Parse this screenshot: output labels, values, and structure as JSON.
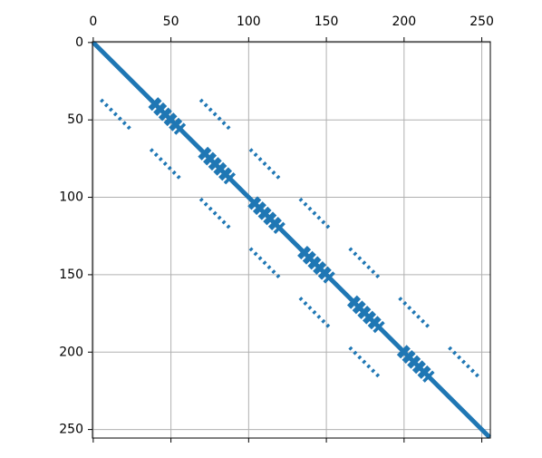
{
  "chart_data": {
    "type": "spy",
    "xlim": [
      -0.5,
      255.5
    ],
    "ylim": [
      255.5,
      -0.5
    ],
    "xticks": [
      0,
      50,
      100,
      150,
      200,
      250
    ],
    "yticks": [
      0,
      50,
      100,
      150,
      200,
      250
    ],
    "grid": true,
    "color": "#1f77b4",
    "segments": [
      {
        "style": "solid",
        "x": [
          0,
          255
        ],
        "y": [
          0,
          255
        ]
      },
      {
        "style": "dashed",
        "x": [
          5,
          25
        ],
        "y": [
          37,
          57
        ]
      },
      {
        "style": "dashed",
        "x": [
          37,
          57
        ],
        "y": [
          69,
          89
        ]
      },
      {
        "style": "dashed",
        "x": [
          69,
          89
        ],
        "y": [
          101,
          121
        ]
      },
      {
        "style": "dashed",
        "x": [
          101,
          121
        ],
        "y": [
          133,
          153
        ]
      },
      {
        "style": "dashed",
        "x": [
          133,
          153
        ],
        "y": [
          165,
          185
        ]
      },
      {
        "style": "dashed",
        "x": [
          165,
          185
        ],
        "y": [
          197,
          217
        ]
      },
      {
        "style": "dashed",
        "x": [
          69,
          89
        ],
        "y": [
          37,
          57
        ]
      },
      {
        "style": "dashed",
        "x": [
          101,
          121
        ],
        "y": [
          69,
          89
        ]
      },
      {
        "style": "dashed",
        "x": [
          133,
          153
        ],
        "y": [
          101,
          121
        ]
      },
      {
        "style": "dashed",
        "x": [
          165,
          185
        ],
        "y": [
          133,
          153
        ]
      },
      {
        "style": "dashed",
        "x": [
          197,
          217
        ],
        "y": [
          165,
          185
        ]
      },
      {
        "style": "dashed",
        "x": [
          229,
          249
        ],
        "y": [
          197,
          217
        ]
      },
      {
        "style": "blob",
        "x": [
          40,
          58
        ],
        "y": [
          37,
          55
        ]
      },
      {
        "style": "blob",
        "x": [
          37,
          55
        ],
        "y": [
          40,
          58
        ]
      },
      {
        "style": "blob",
        "x": [
          72,
          90
        ],
        "y": [
          69,
          87
        ]
      },
      {
        "style": "blob",
        "x": [
          69,
          87
        ],
        "y": [
          72,
          90
        ]
      },
      {
        "style": "blob",
        "x": [
          104,
          122
        ],
        "y": [
          101,
          119
        ]
      },
      {
        "style": "blob",
        "x": [
          101,
          119
        ],
        "y": [
          104,
          122
        ]
      },
      {
        "style": "blob",
        "x": [
          136,
          154
        ],
        "y": [
          133,
          151
        ]
      },
      {
        "style": "blob",
        "x": [
          133,
          151
        ],
        "y": [
          136,
          154
        ]
      },
      {
        "style": "blob",
        "x": [
          168,
          186
        ],
        "y": [
          165,
          183
        ]
      },
      {
        "style": "blob",
        "x": [
          165,
          183
        ],
        "y": [
          168,
          186
        ]
      },
      {
        "style": "blob",
        "x": [
          200,
          218
        ],
        "y": [
          197,
          215
        ]
      },
      {
        "style": "blob",
        "x": [
          197,
          215
        ],
        "y": [
          200,
          218
        ]
      }
    ]
  }
}
